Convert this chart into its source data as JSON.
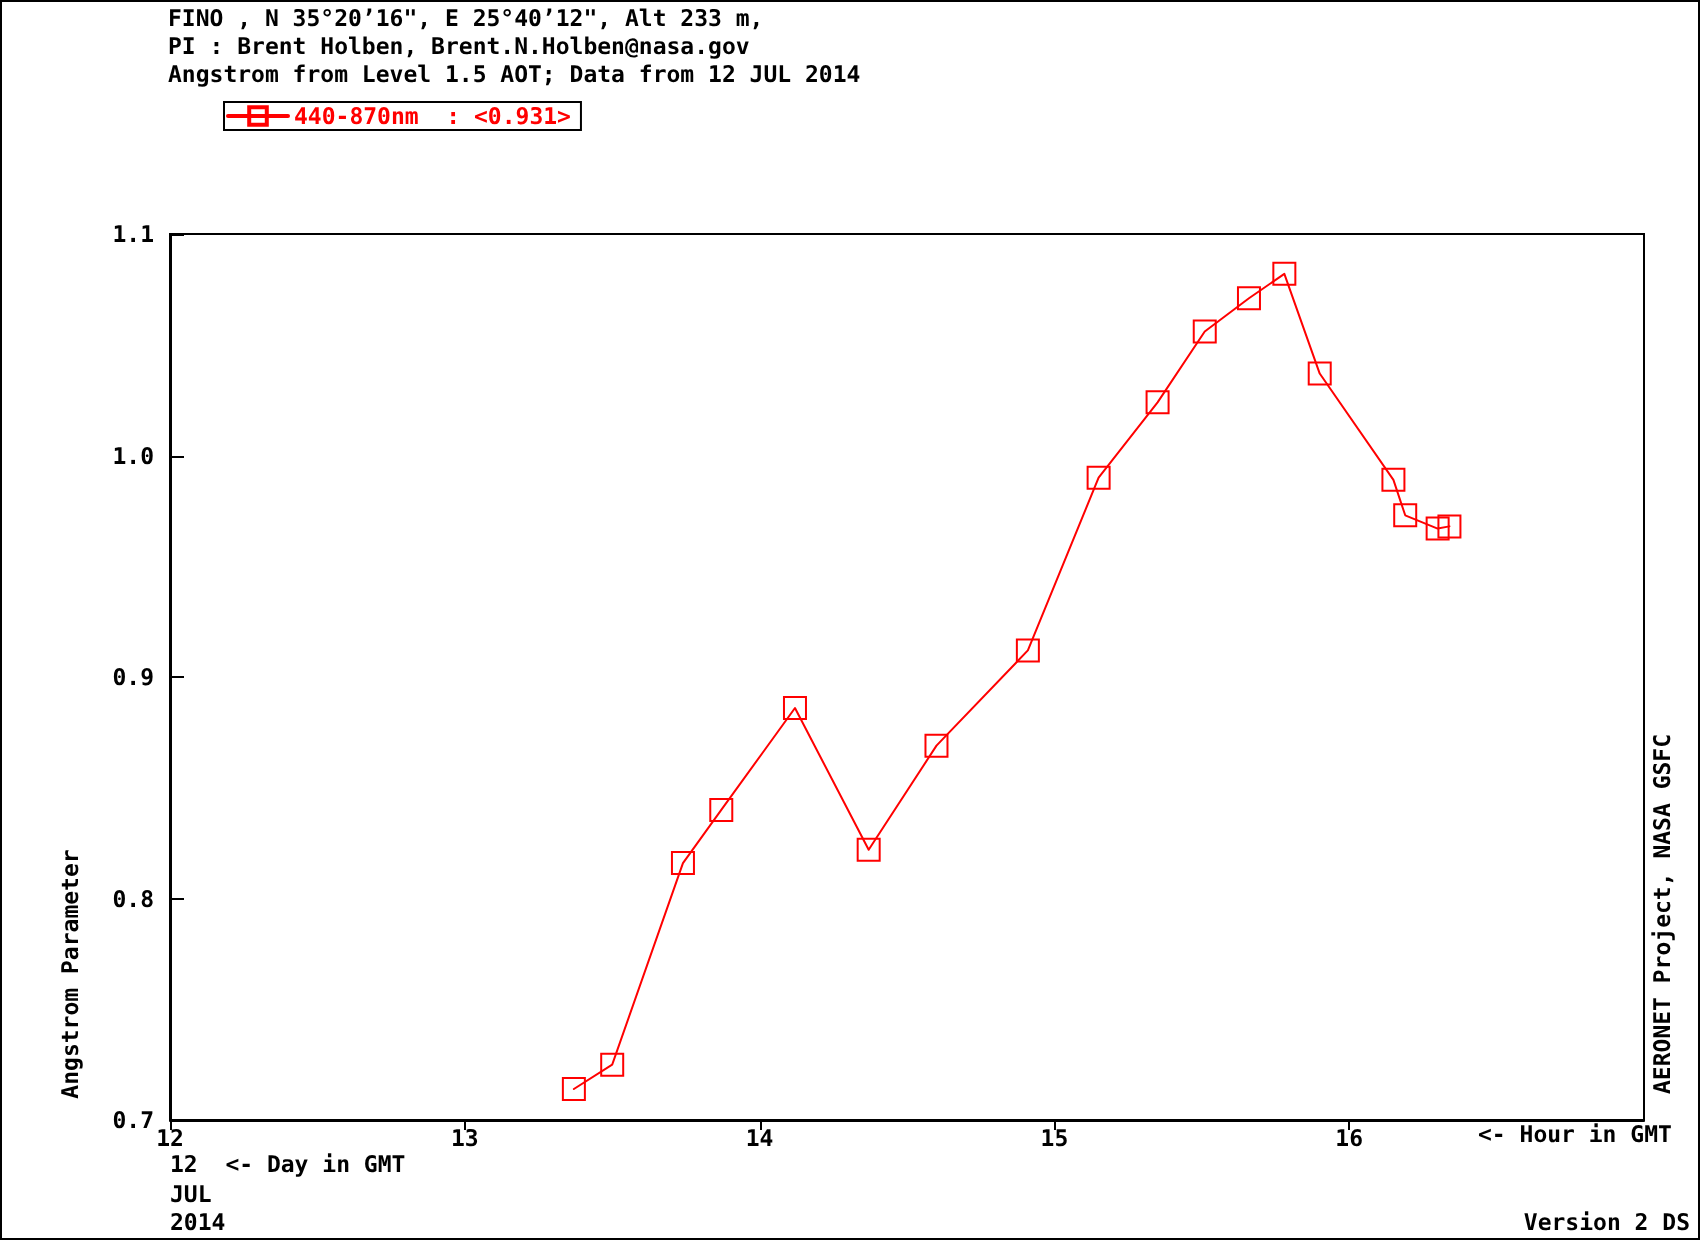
{
  "chart_data": {
    "type": "line",
    "title": "FINO , N 35°20’16\", E 25°40’12\", Alt 233 m,",
    "subtitle": "PI : Brent Holben, Brent.N.Holben@nasa.gov\nAngstrom from Level 1.5 AOT; Data from 12 JUL 2014",
    "xlabel": "<- Hour in GMT",
    "ylabel": "Angstrom Parameter",
    "annotations": [
      "12  <- Day in GMT",
      "JUL",
      "2014",
      "AERONET Project, NASA GSFC",
      "Version 2 DS"
    ],
    "x": [
      13.37,
      13.5,
      13.74,
      13.87,
      14.12,
      14.37,
      14.6,
      14.91,
      15.15,
      15.35,
      15.51,
      15.66,
      15.78,
      15.9,
      16.15,
      16.19,
      16.3,
      16.34
    ],
    "series": [
      {
        "name": "440-870nm  : <0.931>",
        "color": "#ff0000",
        "values": [
          0.714,
          0.725,
          0.816,
          0.84,
          0.886,
          0.822,
          0.869,
          0.912,
          0.99,
          1.024,
          1.056,
          1.071,
          1.082,
          1.037,
          0.989,
          0.973,
          0.967,
          0.968
        ]
      }
    ],
    "xlim": [
      12,
      17
    ],
    "xticks": [
      12,
      13,
      14,
      15,
      16
    ],
    "ylim": [
      0.7,
      1.1
    ],
    "yticks": [
      0.7,
      0.8,
      0.9,
      {
        "value": 1,
        "label": "1.0"
      },
      1.1
    ],
    "legend": "top left",
    "marker": "square",
    "line_style": "solid"
  }
}
